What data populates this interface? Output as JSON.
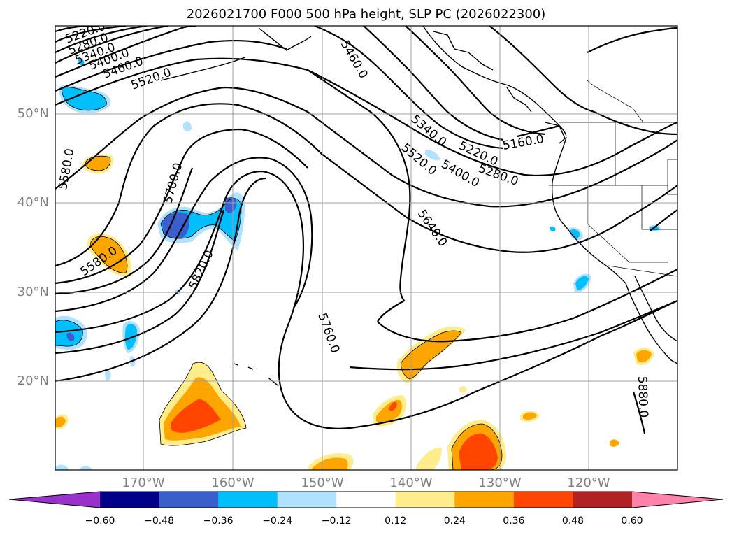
{
  "title": "2026021700 F000 500 hPa height, SLP PC (2026022300)",
  "lat_labels": [
    "50°N",
    "40°N",
    "30°N",
    "20°N"
  ],
  "lon_labels": [
    "170°W",
    "160°W",
    "150°W",
    "140°W",
    "130°W",
    "120°W"
  ],
  "contour_labels": [
    "5220.0",
    "5280.0",
    "5340.0",
    "5400.0",
    "5460.0",
    "5520.0",
    "5460.0",
    "5580.0",
    "5700.0",
    "5580.0",
    "5820.0",
    "5340.0",
    "5220.0",
    "5160.0",
    "5520.0",
    "5400.0",
    "5280.0",
    "5640.0",
    "5760.0",
    "5880.0"
  ],
  "colorbar": {
    "ticks": [
      "−0.60",
      "−0.48",
      "−0.36",
      "−0.24",
      "−0.12",
      "0.12",
      "0.24",
      "0.36",
      "0.48",
      "0.60"
    ],
    "colors": [
      "#9932cc",
      "#00008b",
      "#3a5fcd",
      "#00bfff",
      "#b0e2ff",
      "#ffffff",
      "#ffec8b",
      "#ffa500",
      "#ff4500",
      "#b22222",
      "#ff82ab"
    ]
  },
  "colors": {
    "negative_light": "#b0e2ff",
    "negative_mid": "#00bfff",
    "negative_strong": "#3a5fcd",
    "positive_light": "#ffec8b",
    "positive_mid": "#ffa500",
    "positive_strong": "#ff4500",
    "grid": "#a0a0a0",
    "contour": "#000000"
  }
}
